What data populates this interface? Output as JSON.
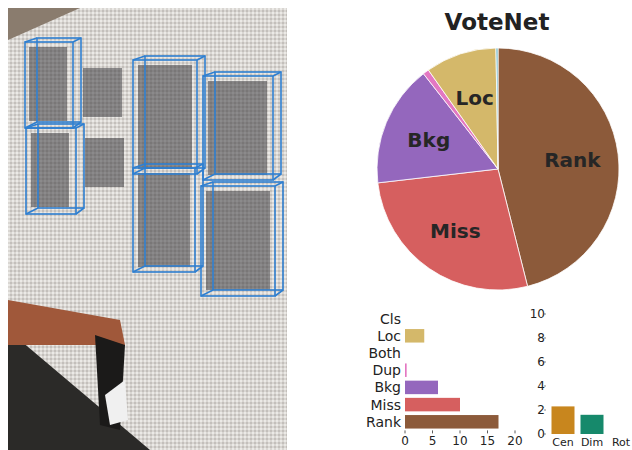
{
  "chart_data": [
    {
      "type": "pie",
      "title": "VoteNet",
      "categories": [
        "Rank",
        "Miss",
        "Bkg",
        null,
        "Loc",
        null
      ],
      "values": [
        17,
        10,
        6,
        0.3,
        3.5,
        0.1
      ],
      "colors": [
        "#8c5a3a",
        "#d65f5f",
        "#9467bd",
        "#e377c2",
        "#d4b86a",
        "#6fb8c9"
      ]
    },
    {
      "type": "bar",
      "orientation": "horizontal",
      "categories": [
        "Cls",
        "Loc",
        "Both",
        "Dup",
        "Bkg",
        "Miss",
        "Rank"
      ],
      "values": [
        0,
        3.5,
        0,
        0.3,
        6,
        10,
        17
      ],
      "colors": [
        "#6fb8c9",
        "#d4b86a",
        "#7f7f7f",
        "#e377c2",
        "#9467bd",
        "#d65f5f",
        "#8c5a3a"
      ],
      "xlim": [
        0,
        20
      ],
      "xticks": [
        0,
        5,
        10,
        15,
        20
      ]
    },
    {
      "type": "bar",
      "categories": [
        "Cen",
        "Dim",
        "Rot"
      ],
      "values": [
        2.3,
        1.6,
        0
      ],
      "colors": [
        "#c8861e",
        "#16896b",
        "#3a6db0"
      ],
      "ylim": [
        0,
        10
      ],
      "yticks": [
        0,
        2,
        4,
        6,
        8,
        10
      ]
    }
  ]
}
